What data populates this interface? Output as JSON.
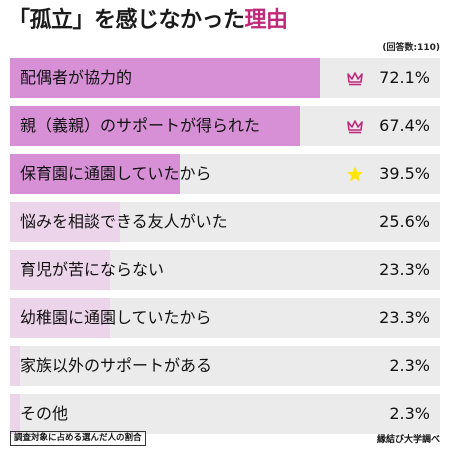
{
  "title": {
    "prefix": "「孤立」を感じなかった",
    "highlight": "理由"
  },
  "respondents_note": "(回答数:110)",
  "footnote": "調査対象に占める選んだ人の割合",
  "source": "縁結び大学調べ",
  "colors": {
    "bar_top": "#d78fd6",
    "bar_light": "#ecd4ea",
    "track": "#ebebeb",
    "crown": "#c0287a",
    "star": "#ffe600",
    "title_highlight": "#c0287a"
  },
  "chart_data": {
    "type": "bar",
    "orientation": "horizontal",
    "categories": [
      "配偶者が協力的",
      "親（義親）のサポートが得られた",
      "保育園に通園していたから",
      "悩みを相談できる友人がいた",
      "育児が苦にならない",
      "幼稚園に通園していたから",
      "家族以外のサポートがある",
      "その他"
    ],
    "values": [
      72.1,
      67.4,
      39.5,
      25.6,
      23.3,
      23.3,
      2.3,
      2.3
    ],
    "value_labels": [
      "72.1%",
      "67.4%",
      "39.5%",
      "25.6%",
      "23.3%",
      "23.3%",
      "2.3%",
      "2.3%"
    ],
    "unit": "%",
    "xlim": [
      0,
      100
    ],
    "highlight_top": 3,
    "marks": [
      "crown-icon",
      "crown-icon",
      "star-icon",
      "",
      "",
      "",
      "",
      ""
    ]
  }
}
